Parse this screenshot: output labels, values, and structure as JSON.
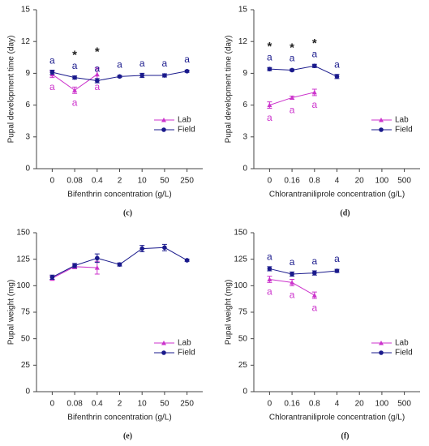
{
  "chart_data": [
    {
      "type": "line",
      "label": "(c)",
      "ylabel": "Pupal development time (day)",
      "xlabel": "Bifenthrin concentration (g/L)",
      "categories": [
        "0",
        "0.08",
        "0.4",
        "2",
        "10",
        "50",
        "250"
      ],
      "ylim": [
        0,
        15
      ],
      "yticks": [
        0,
        3,
        6,
        9,
        12,
        15
      ],
      "legend": "right",
      "annotations": [
        null,
        "*",
        "*",
        null,
        null,
        null,
        null
      ],
      "series": [
        {
          "name": "Lab",
          "color": "#cc33cc",
          "marker": "triangle",
          "values": [
            8.9,
            7.4,
            8.9,
            null,
            null,
            null,
            null
          ],
          "errors": [
            0.3,
            0.3,
            0.6,
            null,
            null,
            null,
            null
          ],
          "letters": [
            "a",
            "a",
            "a",
            null,
            null,
            null,
            null
          ]
        },
        {
          "name": "Field",
          "color": "#1a1a8c",
          "marker": "circle",
          "values": [
            9.1,
            8.6,
            8.3,
            8.7,
            8.8,
            8.8,
            9.2
          ],
          "errors": [
            0.2,
            0.15,
            0.2,
            0.1,
            0.2,
            0.15,
            0.1
          ],
          "letters": [
            "a",
            "a",
            "a",
            "a",
            "a",
            "a",
            "a"
          ]
        }
      ]
    },
    {
      "type": "line",
      "label": "(d)",
      "ylabel": "Pupal development time (day)",
      "xlabel": "Chlorantraniliprole concentration (g/L)",
      "categories": [
        "0",
        "0.16",
        "0.8",
        "4",
        "20",
        "100",
        "500"
      ],
      "ylim": [
        0,
        15
      ],
      "yticks": [
        0,
        3,
        6,
        9,
        12,
        15
      ],
      "legend": "right",
      "annotations": [
        "*",
        "*",
        "*",
        null,
        null,
        null,
        null
      ],
      "series": [
        {
          "name": "Lab",
          "color": "#cc33cc",
          "marker": "triangle",
          "values": [
            6.0,
            6.7,
            7.2,
            null,
            null,
            null,
            null
          ],
          "errors": [
            0.3,
            0.15,
            0.3,
            null,
            null,
            null,
            null
          ],
          "letters": [
            "a",
            "a",
            "a",
            null,
            null,
            null,
            null
          ]
        },
        {
          "name": "Field",
          "color": "#1a1a8c",
          "marker": "circle",
          "values": [
            9.4,
            9.3,
            9.7,
            8.7,
            null,
            null,
            null
          ],
          "errors": [
            0.15,
            0.1,
            0.15,
            0.2,
            null,
            null,
            null
          ],
          "letters": [
            "a",
            "a",
            "a",
            "a",
            null,
            null,
            null
          ]
        }
      ]
    },
    {
      "type": "line",
      "label": "(e)",
      "ylabel": "Pupal weight (mg)",
      "xlabel": "Bifenthrin concentration (g/L)",
      "categories": [
        "0",
        "0.08",
        "0.4",
        "2",
        "10",
        "50",
        "250"
      ],
      "ylim": [
        0,
        150
      ],
      "yticks": [
        0,
        25,
        50,
        75,
        100,
        125,
        150
      ],
      "legend": "right",
      "series": [
        {
          "name": "Lab",
          "color": "#cc33cc",
          "marker": "triangle",
          "values": [
            107,
            118,
            117,
            null,
            null,
            null,
            null
          ],
          "errors": [
            2,
            2,
            6,
            null,
            null,
            null,
            null
          ]
        },
        {
          "name": "Field",
          "color": "#1a1a8c",
          "marker": "circle",
          "values": [
            108,
            119,
            126,
            120,
            135,
            136,
            124
          ],
          "errors": [
            2,
            2,
            4,
            1.5,
            3,
            3,
            1
          ]
        }
      ]
    },
    {
      "type": "line",
      "label": "(f)",
      "ylabel": "Pupal weight (mg)",
      "xlabel": "Chlorantraniliprole concentration (g/L)",
      "categories": [
        "0",
        "0.16",
        "0.8",
        "4",
        "20",
        "100",
        "500"
      ],
      "ylim": [
        0,
        150
      ],
      "yticks": [
        0,
        25,
        50,
        75,
        100,
        125,
        150
      ],
      "legend": "right",
      "series": [
        {
          "name": "Lab",
          "color": "#cc33cc",
          "marker": "triangle",
          "values": [
            106,
            103,
            91,
            null,
            null,
            null,
            null
          ],
          "errors": [
            3,
            3,
            3,
            null,
            null,
            null,
            null
          ],
          "letters": [
            "a",
            "a",
            "a",
            null,
            null,
            null,
            null
          ]
        },
        {
          "name": "Field",
          "color": "#1a1a8c",
          "marker": "circle",
          "values": [
            116,
            111,
            112,
            114,
            null,
            null,
            null
          ],
          "errors": [
            2,
            2,
            2,
            1.5,
            null,
            null,
            null
          ],
          "letters": [
            "a",
            "a",
            "a",
            "a",
            null,
            null,
            null
          ]
        }
      ]
    }
  ]
}
